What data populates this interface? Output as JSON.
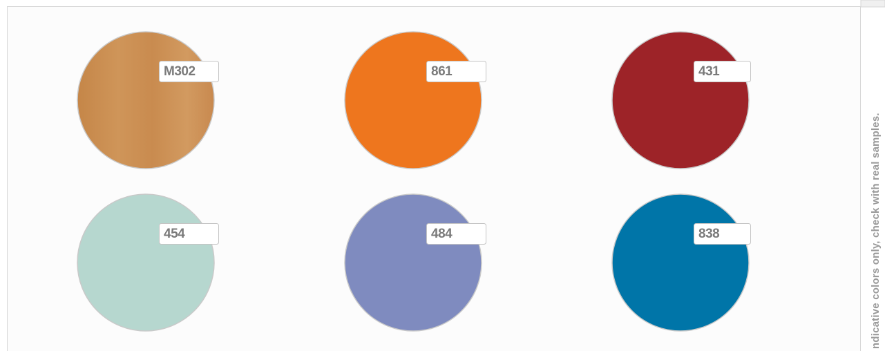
{
  "swatches": [
    {
      "code": "M302"
    },
    {
      "code": "861"
    },
    {
      "code": "431"
    },
    {
      "code": "454"
    },
    {
      "code": "484"
    },
    {
      "code": "838"
    }
  ],
  "note": "ndicative colors only, check with real samples."
}
